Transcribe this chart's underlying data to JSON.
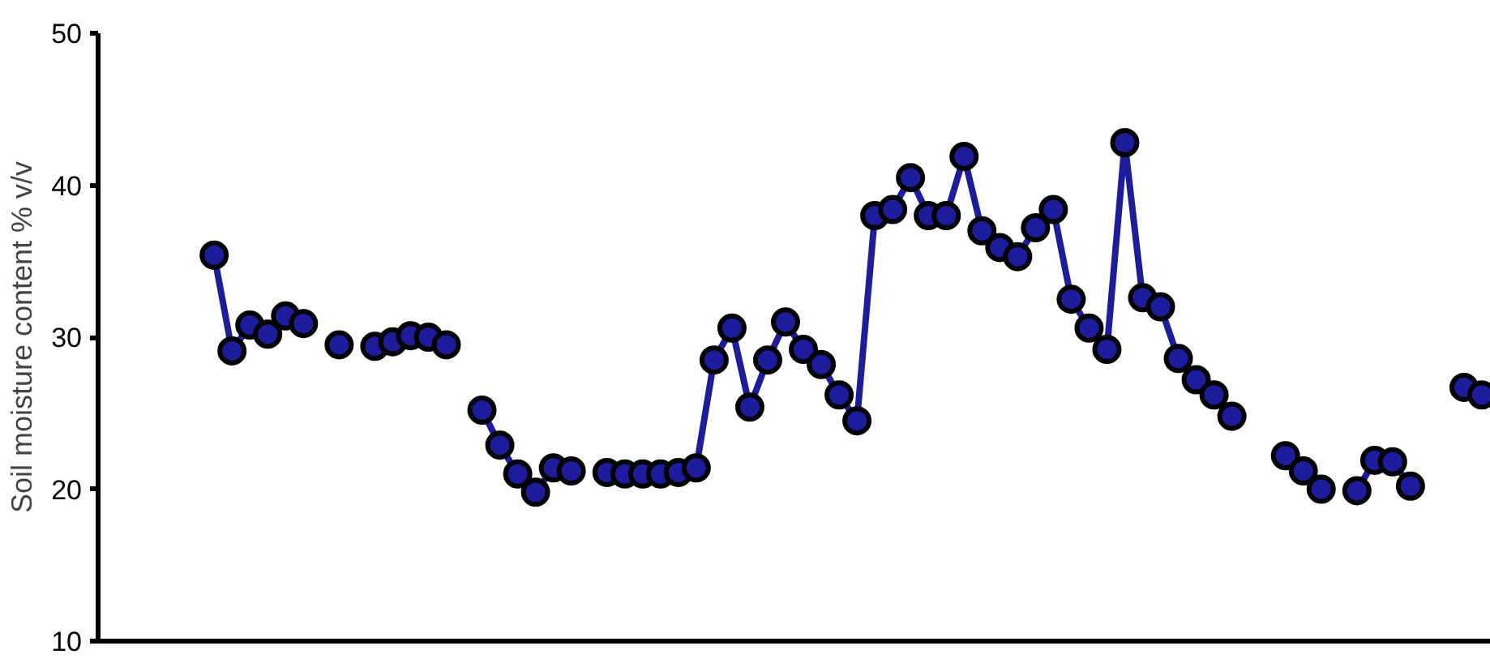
{
  "chart_data": {
    "type": "line",
    "ylabel": "Soil moisture content % v/v",
    "categories": [
      null,
      null,
      null,
      null,
      null,
      null,
      null,
      null,
      null,
      null,
      null,
      null,
      null,
      null,
      null,
      null,
      null,
      null,
      null,
      null,
      null,
      null,
      null,
      null,
      null,
      null,
      null,
      null,
      null,
      null,
      null,
      null,
      null,
      null,
      null,
      null,
      null,
      null,
      null,
      null,
      null,
      null,
      null,
      null,
      null,
      null,
      null,
      null,
      null,
      null,
      null,
      null,
      null,
      null,
      null,
      null,
      null,
      null,
      null,
      null,
      null,
      null,
      null,
      null,
      null,
      null,
      null,
      null,
      null,
      null,
      null,
      null,
      null,
      null,
      null,
      null,
      null,
      null
    ],
    "series": [
      {
        "color": "#1c1c9c",
        "values": [
          null,
          null,
          null,
          null,
          null,
          null,
          35.4,
          29.1,
          30.8,
          30.2,
          31.4,
          30.9,
          null,
          29.5,
          null,
          29.4,
          29.7,
          30.1,
          30.0,
          29.5,
          null,
          25.2,
          22.9,
          21.0,
          19.8,
          21.4,
          21.2,
          null,
          21.1,
          21.0,
          21.0,
          21.0,
          21.1,
          21.4,
          28.5,
          30.6,
          25.4,
          28.5,
          31.0,
          29.2,
          28.2,
          26.2,
          24.5,
          38.0,
          38.4,
          40.5,
          38.0,
          38.0,
          41.9,
          37.0,
          35.9,
          35.3,
          37.2,
          38.4,
          32.5,
          30.6,
          29.2,
          42.8,
          32.6,
          32.0,
          28.6,
          27.2,
          26.2,
          24.8,
          null,
          null,
          22.2,
          21.2,
          20.0,
          null,
          19.9,
          21.9,
          21.8,
          20.2,
          null,
          null,
          26.7,
          26.2
        ]
      }
    ],
    "ylim": [
      10,
      50
    ],
    "yticks": [
      10,
      20,
      30,
      40,
      50
    ],
    "grid": false,
    "marker": "circle",
    "line_style": "solid"
  }
}
